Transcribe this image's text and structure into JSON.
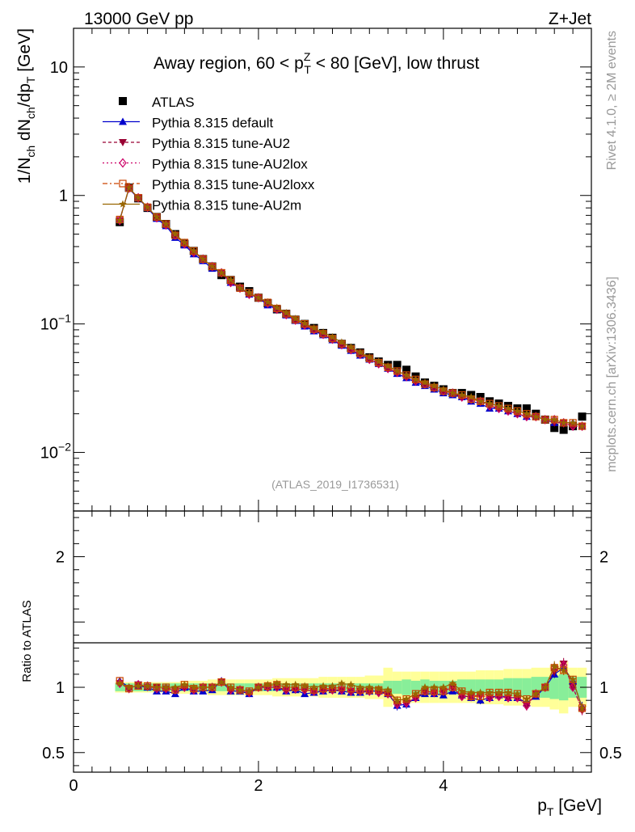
{
  "header": {
    "left": "13000 GeV pp",
    "right": "Z+Jet"
  },
  "side": {
    "top": "Rivet 4.1.0, ≥ 2M events",
    "bottom": "mcplots.cern.ch [arXiv:1306.3436]"
  },
  "watermark": "(ATLAS_2019_I1736531)",
  "colors": {
    "atlas": "#000000",
    "default": "#0000cc",
    "au2": "#990033",
    "au2lox": "#cc0066",
    "au2loxx": "#cc4400",
    "au2m": "#996600",
    "band_inner": "#88ee99",
    "band_outer": "#ffff99"
  },
  "chart_data": [
    {
      "type": "line",
      "panel": "main",
      "title_parts": {
        "pre": "Away region, 60 < p",
        "sup": "Z",
        "sub": "T",
        "post": " < 80 [GeV], low thrust"
      },
      "ylabel_parts": [
        "1/N",
        "ch",
        " dN",
        "ch",
        "/dp",
        "T",
        " [GeV]"
      ],
      "yscale": "log",
      "ylim": [
        0.0035,
        20
      ],
      "xlim": [
        0,
        5.6
      ],
      "yticks": [
        {
          "v": 10,
          "label": "10"
        },
        {
          "v": 1,
          "label": "1"
        },
        {
          "v": 0.1,
          "label": "10",
          "exp": "−1"
        },
        {
          "v": 0.01,
          "label": "10",
          "exp": "−2"
        }
      ],
      "legend_position": "top-left",
      "x": [
        0.5,
        0.6,
        0.7,
        0.8,
        0.9,
        1.0,
        1.1,
        1.2,
        1.3,
        1.4,
        1.5,
        1.6,
        1.7,
        1.8,
        1.9,
        2.0,
        2.1,
        2.2,
        2.3,
        2.4,
        2.5,
        2.6,
        2.7,
        2.8,
        2.9,
        3.0,
        3.1,
        3.2,
        3.3,
        3.4,
        3.5,
        3.6,
        3.7,
        3.8,
        3.9,
        4.0,
        4.1,
        4.2,
        4.3,
        4.4,
        4.5,
        4.6,
        4.7,
        4.8,
        4.9,
        5.0,
        5.1,
        5.2,
        5.3,
        5.4,
        5.5
      ],
      "series": [
        {
          "key": "atlas",
          "name": "ATLAS",
          "marker": "square-filled",
          "values": [
            0.62,
            1.15,
            0.95,
            0.8,
            0.68,
            0.6,
            0.5,
            0.42,
            0.37,
            0.32,
            0.28,
            0.24,
            0.22,
            0.195,
            0.18,
            0.16,
            0.145,
            0.13,
            0.12,
            0.108,
            0.1,
            0.093,
            0.085,
            0.078,
            0.07,
            0.065,
            0.06,
            0.055,
            0.051,
            0.048,
            0.048,
            0.044,
            0.039,
            0.035,
            0.033,
            0.031,
            0.029,
            0.029,
            0.028,
            0.027,
            0.025,
            0.024,
            0.023,
            0.022,
            0.022,
            0.02,
            0.018,
            0.0155,
            0.015,
            0.016,
            0.019
          ]
        },
        {
          "key": "default",
          "name": "Pythia 8.315 default",
          "marker": "triangle-up",
          "values": [
            0.65,
            1.13,
            0.95,
            0.8,
            0.66,
            0.58,
            0.47,
            0.41,
            0.35,
            0.31,
            0.27,
            0.25,
            0.21,
            0.19,
            0.17,
            0.16,
            0.14,
            0.13,
            0.117,
            0.106,
            0.096,
            0.088,
            0.082,
            0.075,
            0.068,
            0.062,
            0.057,
            0.053,
            0.049,
            0.045,
            0.041,
            0.038,
            0.035,
            0.033,
            0.031,
            0.029,
            0.028,
            0.027,
            0.025,
            0.024,
            0.022,
            0.022,
            0.021,
            0.02,
            0.019,
            0.019,
            0.018,
            0.017,
            0.017,
            0.017,
            0.016
          ]
        },
        {
          "key": "au2",
          "name": "Pythia 8.315 tune-AU2",
          "marker": "triangle-down",
          "values": [
            0.64,
            1.14,
            0.96,
            0.8,
            0.68,
            0.59,
            0.49,
            0.42,
            0.36,
            0.32,
            0.28,
            0.25,
            0.21,
            0.19,
            0.17,
            0.16,
            0.145,
            0.13,
            0.118,
            0.106,
            0.098,
            0.09,
            0.083,
            0.076,
            0.069,
            0.063,
            0.058,
            0.053,
            0.049,
            0.045,
            0.042,
            0.039,
            0.036,
            0.034,
            0.032,
            0.03,
            0.029,
            0.027,
            0.026,
            0.025,
            0.023,
            0.022,
            0.021,
            0.02,
            0.019,
            0.019,
            0.018,
            0.017,
            0.017,
            0.016,
            0.016
          ]
        },
        {
          "key": "au2lox",
          "name": "Pythia 8.315 tune-AU2lox",
          "marker": "diamond-open",
          "values": [
            0.64,
            1.14,
            0.96,
            0.81,
            0.67,
            0.59,
            0.49,
            0.42,
            0.36,
            0.32,
            0.28,
            0.25,
            0.21,
            0.19,
            0.17,
            0.16,
            0.145,
            0.13,
            0.118,
            0.107,
            0.098,
            0.09,
            0.083,
            0.076,
            0.069,
            0.063,
            0.058,
            0.053,
            0.049,
            0.045,
            0.042,
            0.039,
            0.036,
            0.034,
            0.032,
            0.03,
            0.029,
            0.027,
            0.026,
            0.025,
            0.023,
            0.022,
            0.021,
            0.02,
            0.019,
            0.019,
            0.018,
            0.018,
            0.017,
            0.016,
            0.016
          ]
        },
        {
          "key": "au2loxx",
          "name": "Pythia 8.315 tune-AU2loxx",
          "marker": "square-open",
          "values": [
            0.65,
            1.14,
            0.96,
            0.81,
            0.68,
            0.6,
            0.49,
            0.43,
            0.37,
            0.32,
            0.28,
            0.25,
            0.22,
            0.19,
            0.175,
            0.16,
            0.147,
            0.132,
            0.12,
            0.108,
            0.1,
            0.091,
            0.084,
            0.077,
            0.07,
            0.064,
            0.059,
            0.054,
            0.05,
            0.046,
            0.043,
            0.04,
            0.037,
            0.034,
            0.032,
            0.03,
            0.029,
            0.028,
            0.026,
            0.025,
            0.024,
            0.023,
            0.022,
            0.021,
            0.02,
            0.019,
            0.018,
            0.018,
            0.017,
            0.017,
            0.016
          ]
        },
        {
          "key": "au2m",
          "name": "Pythia 8.315 tune-AU2m",
          "marker": "star",
          "values": [
            0.64,
            1.15,
            0.96,
            0.81,
            0.68,
            0.6,
            0.5,
            0.43,
            0.37,
            0.32,
            0.28,
            0.25,
            0.22,
            0.19,
            0.175,
            0.16,
            0.148,
            0.134,
            0.122,
            0.11,
            0.101,
            0.093,
            0.086,
            0.079,
            0.072,
            0.066,
            0.06,
            0.055,
            0.051,
            0.047,
            0.043,
            0.04,
            0.037,
            0.035,
            0.033,
            0.031,
            0.029,
            0.028,
            0.027,
            0.025,
            0.024,
            0.023,
            0.022,
            0.021,
            0.02,
            0.019,
            0.018,
            0.018,
            0.017,
            0.017,
            0.016
          ]
        }
      ]
    },
    {
      "type": "line",
      "panel": "ratio",
      "ylabel": "Ratio to ATLAS",
      "xlabel_parts": [
        "p",
        "T",
        " [GeV]"
      ],
      "ylim": [
        0.35,
        2.35
      ],
      "xlim": [
        0,
        5.6
      ],
      "yticks": [
        {
          "v": 2,
          "label": "2"
        },
        {
          "v": 1,
          "label": "1"
        },
        {
          "v": 0.5,
          "label": "0.5"
        }
      ],
      "xticks": [
        {
          "v": 0,
          "label": "0"
        },
        {
          "v": 2,
          "label": "2"
        },
        {
          "v": 4,
          "label": "4"
        }
      ],
      "band_inner_halfwidth": [
        0.03,
        0.03,
        0.03,
        0.03,
        0.03,
        0.03,
        0.03,
        0.03,
        0.03,
        0.03,
        0.03,
        0.03,
        0.03,
        0.03,
        0.03,
        0.03,
        0.03,
        0.03,
        0.03,
        0.03,
        0.03,
        0.03,
        0.03,
        0.03,
        0.03,
        0.03,
        0.03,
        0.03,
        0.03,
        0.05,
        0.05,
        0.06,
        0.05,
        0.06,
        0.05,
        0.05,
        0.05,
        0.06,
        0.06,
        0.06,
        0.06,
        0.06,
        0.07,
        0.07,
        0.07,
        0.08,
        0.08,
        0.09,
        0.1,
        0.08,
        0.08
      ],
      "band_outer_halfwidth": [
        0.04,
        0.04,
        0.04,
        0.04,
        0.04,
        0.04,
        0.04,
        0.05,
        0.05,
        0.05,
        0.06,
        0.06,
        0.06,
        0.06,
        0.06,
        0.06,
        0.06,
        0.07,
        0.07,
        0.07,
        0.07,
        0.07,
        0.08,
        0.08,
        0.08,
        0.08,
        0.08,
        0.09,
        0.09,
        0.15,
        0.12,
        0.12,
        0.12,
        0.12,
        0.12,
        0.12,
        0.12,
        0.12,
        0.12,
        0.13,
        0.13,
        0.13,
        0.14,
        0.14,
        0.14,
        0.15,
        0.15,
        0.17,
        0.2,
        0.15,
        0.15
      ],
      "series": [
        {
          "key": "default",
          "values": [
            1.05,
            1.0,
            1.01,
            1.0,
            0.97,
            0.97,
            0.95,
            1.0,
            0.97,
            0.97,
            0.98,
            1.05,
            0.97,
            0.97,
            0.95,
            1.0,
            1.0,
            1.0,
            0.97,
            0.98,
            0.95,
            0.96,
            0.97,
            0.98,
            0.97,
            0.96,
            0.96,
            0.97,
            0.97,
            0.95,
            0.86,
            0.87,
            0.92,
            0.95,
            0.95,
            0.94,
            0.97,
            0.94,
            0.92,
            0.9,
            0.92,
            0.94,
            0.92,
            0.92,
            0.88,
            0.93,
            1.0,
            1.1,
            1.15,
            1.05,
            0.85
          ]
        },
        {
          "key": "au2",
          "values": [
            1.03,
            0.99,
            1.02,
            1.0,
            1.0,
            0.99,
            0.98,
            1.0,
            0.98,
            1.0,
            1.0,
            1.04,
            0.98,
            0.98,
            0.96,
            1.0,
            1.0,
            1.0,
            0.98,
            0.98,
            0.98,
            0.97,
            0.98,
            0.98,
            0.98,
            0.97,
            0.97,
            0.97,
            0.96,
            0.95,
            0.87,
            0.88,
            0.92,
            0.97,
            0.96,
            0.97,
            1.0,
            0.93,
            0.93,
            0.94,
            0.92,
            0.93,
            0.92,
            0.92,
            0.86,
            0.95,
            1.0,
            1.12,
            1.18,
            1.0,
            0.83
          ]
        },
        {
          "key": "au2lox",
          "values": [
            1.03,
            0.99,
            1.02,
            1.01,
            0.99,
            0.99,
            0.98,
            1.0,
            0.98,
            1.0,
            1.0,
            1.04,
            0.98,
            0.98,
            0.96,
            1.0,
            1.0,
            1.0,
            0.98,
            0.99,
            0.98,
            0.97,
            0.98,
            0.98,
            0.98,
            0.97,
            0.97,
            0.97,
            0.96,
            0.95,
            0.87,
            0.88,
            0.92,
            0.97,
            0.96,
            0.97,
            1.0,
            0.93,
            0.93,
            0.94,
            0.92,
            0.93,
            0.92,
            0.92,
            0.86,
            0.95,
            1.0,
            1.15,
            1.17,
            1.0,
            0.83
          ]
        },
        {
          "key": "au2loxx",
          "values": [
            1.05,
            0.99,
            1.01,
            1.01,
            1.0,
            1.0,
            0.98,
            1.02,
            0.99,
            1.0,
            1.0,
            1.04,
            1.0,
            0.98,
            0.97,
            1.0,
            1.01,
            1.02,
            1.0,
            1.0,
            1.0,
            0.98,
            0.99,
            0.99,
            1.0,
            0.99,
            0.98,
            0.98,
            0.98,
            0.96,
            0.9,
            0.91,
            0.95,
            0.97,
            0.97,
            0.97,
            1.0,
            0.97,
            0.93,
            0.93,
            0.96,
            0.96,
            0.96,
            0.95,
            0.91,
            0.95,
            1.0,
            1.15,
            1.13,
            1.06,
            0.84
          ]
        },
        {
          "key": "au2m",
          "values": [
            1.03,
            1.0,
            1.01,
            1.01,
            1.0,
            1.0,
            1.0,
            1.02,
            1.0,
            1.0,
            1.0,
            1.04,
            1.0,
            0.98,
            0.97,
            1.0,
            1.02,
            1.03,
            1.02,
            1.02,
            1.01,
            1.0,
            1.01,
            1.01,
            1.03,
            1.02,
            1.0,
            1.0,
            0.99,
            0.98,
            0.9,
            0.91,
            0.95,
            1.0,
            1.0,
            1.0,
            1.03,
            0.97,
            0.96,
            0.96,
            0.96,
            0.96,
            0.96,
            0.95,
            0.91,
            0.95,
            1.0,
            1.16,
            1.13,
            1.06,
            0.84
          ]
        }
      ]
    }
  ]
}
